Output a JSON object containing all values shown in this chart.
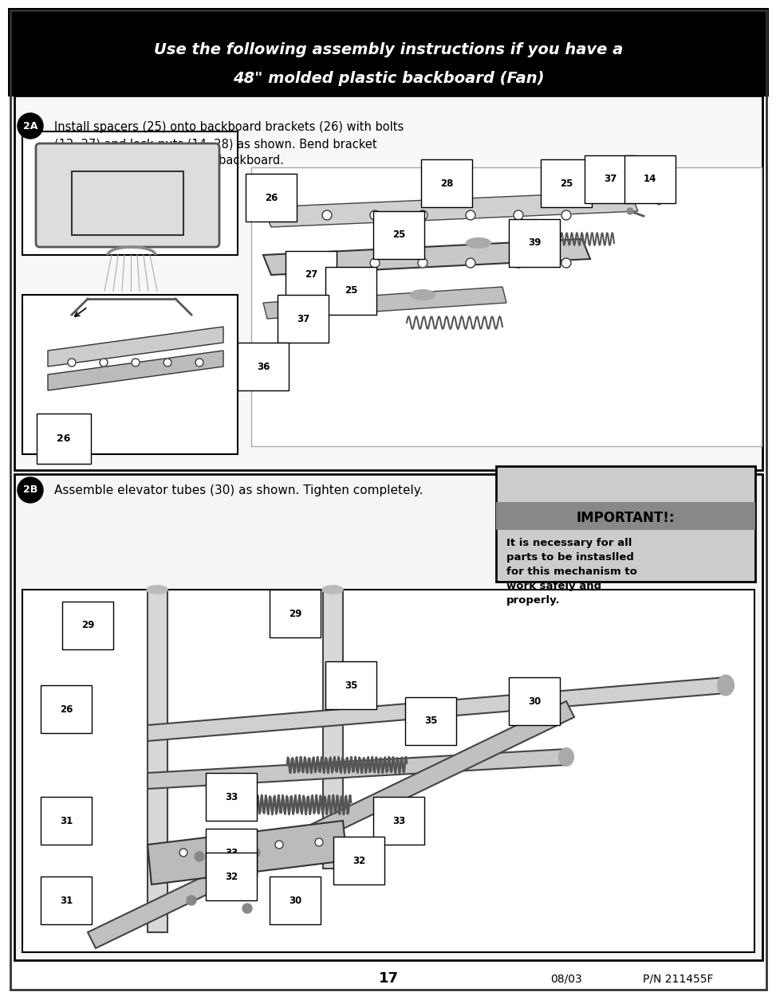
{
  "page_bg": "#ffffff",
  "header_bg": "#000000",
  "header_text_line1": "Use the following assembly instructions if you have a",
  "header_text_line2": "48\" molded plastic backboard (Fan)",
  "header_text_color": "#ffffff",
  "section2a_label": "2A.",
  "section2a_text": "Install spacers (25) onto backboard brackets (26) with bolts\n(12, 27) and lock-nuts (14, 28) as shown. Bend bracket\n(26) to line up with holes in backboard.",
  "section2b_label": "2B.",
  "section2b_text": "Assemble elevator tubes (30) as shown. Tighten completely.",
  "important_title": "IMPORTANT!:",
  "important_text": "It is necessary for all\nparts to be instaslled\nfor this mechanism to\nwork safely and\nproperly.",
  "footer_page": "17",
  "footer_date": "08/03",
  "footer_pn": "P/N 211455F",
  "outer_border_color": "#000000",
  "section_border_color": "#000000",
  "important_border_color": "#555555",
  "important_bg": "#cccccc"
}
